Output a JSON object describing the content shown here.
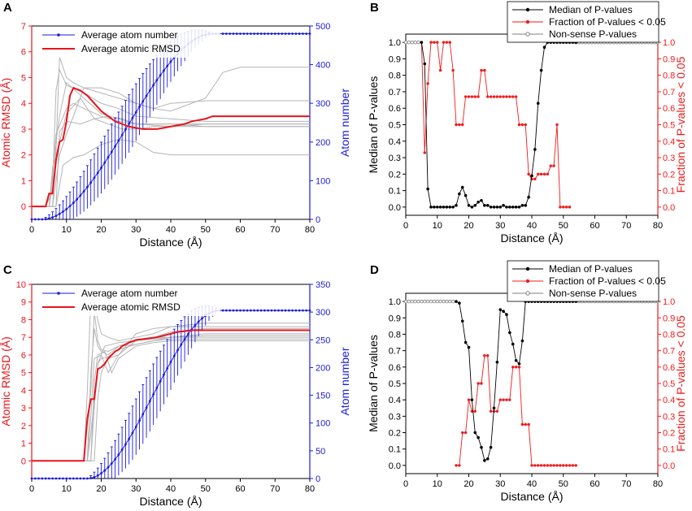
{
  "chart_data": [
    {
      "panel": "A",
      "type": "line",
      "xlabel": "Distance (Å)",
      "ylabel_left": "Atomic RMSD (Å)",
      "ylabel_right": "Atom number",
      "xlim": [
        0,
        80
      ],
      "ylim_left": [
        -0.5,
        7
      ],
      "ylim_right": [
        0,
        500
      ],
      "xticks": [
        0,
        10,
        20,
        30,
        40,
        50,
        60,
        70,
        80
      ],
      "yticks_left": [
        0,
        1,
        2,
        3,
        4,
        5,
        6,
        7
      ],
      "yticks_right": [
        0,
        100,
        200,
        300,
        400,
        500
      ],
      "legend": [
        "Average atom number",
        "Average atomic RMSD"
      ],
      "colors": {
        "rmsd": "#e8141b",
        "atoms": "#1a1adf",
        "individual": "#b4b4b4"
      },
      "rmsd": {
        "x": [
          0,
          4,
          5,
          6,
          7,
          8,
          9,
          10,
          11,
          12,
          14,
          16,
          18,
          20,
          22,
          24,
          26,
          28,
          30,
          32,
          34,
          36,
          38,
          40,
          42,
          44,
          46,
          48,
          50,
          52,
          54,
          60,
          70,
          80
        ],
        "y": [
          0,
          0,
          0.5,
          0.5,
          1.8,
          2.5,
          2.6,
          3.3,
          4.3,
          4.6,
          4.5,
          4.3,
          4.0,
          3.7,
          3.5,
          3.3,
          3.2,
          3.1,
          3.05,
          3.0,
          3.0,
          3.0,
          3.05,
          3.1,
          3.15,
          3.2,
          3.3,
          3.35,
          3.4,
          3.5,
          3.5,
          3.5,
          3.5,
          3.5
        ]
      },
      "atoms": {
        "x_start": 0,
        "x_end": 80,
        "step": 1,
        "rise_start": 3,
        "rise_end": 52,
        "max": 480,
        "err_max": 75
      },
      "individual": [
        {
          "x": [
            0,
            4,
            5,
            6,
            7,
            8,
            10,
            12,
            15,
            20,
            25,
            30,
            35,
            40,
            50,
            55,
            60,
            70,
            80
          ],
          "y": [
            0,
            0,
            0.3,
            0.6,
            2.2,
            5.8,
            5.0,
            4.8,
            4.6,
            4.4,
            4.2,
            4.0,
            3.8,
            3.7,
            4.2,
            5.2,
            5.4,
            5.4,
            5.4
          ]
        },
        {
          "x": [
            0,
            5,
            6,
            7,
            8,
            10,
            15,
            20,
            25,
            30,
            40,
            50,
            80
          ],
          "y": [
            0,
            0,
            0.8,
            4.5,
            5.3,
            4.7,
            4.4,
            4.0,
            3.8,
            3.5,
            3.4,
            3.3,
            3.3
          ]
        },
        {
          "x": [
            0,
            6,
            7,
            8,
            10,
            15,
            20,
            25,
            30,
            40,
            50,
            80
          ],
          "y": [
            0,
            0,
            2.5,
            3.5,
            4.8,
            4.2,
            3.6,
            3.4,
            3.2,
            3.2,
            3.1,
            3.1
          ]
        },
        {
          "x": [
            0,
            5,
            6,
            8,
            10,
            14,
            18,
            22,
            26,
            30,
            35,
            40,
            50,
            80
          ],
          "y": [
            0,
            0,
            1.5,
            2.5,
            3.6,
            4.2,
            3.4,
            3.2,
            3.0,
            3.0,
            3.1,
            3.1,
            3.1,
            3.1
          ]
        },
        {
          "x": [
            0,
            6,
            8,
            10,
            12,
            15,
            20,
            25,
            30,
            35,
            40,
            50,
            80
          ],
          "y": [
            0,
            0,
            2.0,
            2.8,
            3.5,
            4.6,
            4.6,
            4.4,
            4.0,
            3.8,
            4.0,
            4.1,
            4.1
          ]
        },
        {
          "x": [
            0,
            7,
            8,
            10,
            14,
            18,
            22,
            26,
            30,
            40,
            50,
            80
          ],
          "y": [
            0,
            0,
            2.9,
            3.3,
            3.2,
            3.4,
            3.5,
            3.4,
            3.2,
            3.2,
            3.2,
            3.2
          ]
        },
        {
          "x": [
            0,
            7,
            9,
            12,
            15,
            20,
            25,
            30,
            35,
            40,
            50,
            80
          ],
          "y": [
            0,
            0,
            1.6,
            1.9,
            2.0,
            2.4,
            2.6,
            2.5,
            2.1,
            2.0,
            2.0,
            2.0
          ]
        },
        {
          "x": [
            0,
            5,
            6,
            7,
            10,
            12,
            15,
            20,
            25,
            30,
            40,
            50,
            80
          ],
          "y": [
            0,
            0,
            1.2,
            2.8,
            3.8,
            4.0,
            3.8,
            3.5,
            3.3,
            3.2,
            3.1,
            3.2,
            3.2
          ]
        }
      ]
    },
    {
      "panel": "B",
      "type": "line",
      "xlabel": "Distance (Å)",
      "ylabel_left": "Median of P-values",
      "ylabel_right": "Fraction of P-values < 0.05",
      "xlim": [
        0,
        80
      ],
      "ylim": [
        -0.05,
        1.05
      ],
      "xticks": [
        0,
        10,
        20,
        30,
        40,
        50,
        60,
        70,
        80
      ],
      "yticks": [
        0.0,
        0.1,
        0.2,
        0.3,
        0.4,
        0.5,
        0.6,
        0.7,
        0.8,
        0.9,
        1.0
      ],
      "legend": [
        "Median of P-values",
        "Fraction of P-values < 0.05",
        "Non-sense P-values"
      ],
      "colors": {
        "median": "#000000",
        "fraction": "#ee1b1b",
        "nonsense": "#7f7f7f"
      },
      "median": {
        "x": [
          5,
          6,
          7,
          8,
          9,
          10,
          11,
          12,
          13,
          14,
          15,
          16,
          17,
          18,
          19,
          20,
          21,
          22,
          23,
          24,
          25,
          26,
          27,
          28,
          29,
          30,
          31,
          32,
          33,
          34,
          35,
          36,
          37,
          38,
          39,
          40,
          41,
          42,
          43,
          44,
          45,
          46,
          47,
          48,
          49,
          50,
          51,
          52,
          53,
          54
        ],
        "y": [
          1.0,
          0.87,
          0.11,
          0.0,
          0.0,
          0.0,
          0.0,
          0.0,
          0.0,
          0.0,
          0.0,
          0.01,
          0.08,
          0.12,
          0.07,
          0.01,
          0.0,
          0.01,
          0.03,
          0.04,
          0.01,
          0.01,
          0.0,
          0.0,
          0.0,
          0.0,
          0.01,
          0.0,
          0.0,
          0.0,
          0.0,
          0.0,
          0.01,
          0.01,
          0.06,
          0.19,
          0.35,
          0.63,
          0.83,
          0.97,
          1.0,
          1.0,
          1.0,
          1.0,
          1.0,
          1.0,
          1.0,
          1.0,
          1.0,
          1.0
        ]
      },
      "fraction": {
        "x": [
          5,
          6,
          7,
          8,
          9,
          10,
          11,
          12,
          13,
          14,
          15,
          16,
          17,
          18,
          19,
          20,
          21,
          22,
          23,
          24,
          25,
          26,
          27,
          28,
          29,
          30,
          31,
          32,
          33,
          34,
          35,
          36,
          37,
          38,
          39,
          40,
          41,
          42,
          43,
          44,
          45,
          46,
          47,
          48,
          49,
          50,
          51,
          52
        ],
        "y": [
          1.0,
          0.33,
          0.75,
          1.0,
          1.0,
          1.0,
          0.83,
          1.0,
          1.0,
          1.0,
          0.83,
          0.5,
          0.5,
          0.5,
          0.67,
          0.67,
          0.67,
          0.67,
          0.67,
          0.83,
          0.83,
          0.67,
          0.67,
          0.67,
          0.67,
          0.67,
          0.67,
          0.67,
          0.67,
          0.67,
          0.67,
          0.5,
          0.5,
          0.5,
          0.2,
          0.17,
          0.17,
          0.2,
          0.2,
          0.2,
          0.2,
          0.25,
          0.25,
          0.5,
          0.0,
          0.0,
          0.0,
          0.0
        ]
      },
      "nonsense": {
        "ranges": [
          [
            0,
            4
          ],
          [
            54,
            80
          ]
        ],
        "value": 1.0
      }
    },
    {
      "panel": "C",
      "type": "line",
      "xlabel": "Distance (Å)",
      "ylabel_left": "Atomic RMSD (Å)",
      "ylabel_right": "Atom number",
      "xlim": [
        0,
        80
      ],
      "ylim_left": [
        -1,
        10
      ],
      "ylim_right": [
        0,
        350
      ],
      "xticks": [
        0,
        10,
        20,
        30,
        40,
        50,
        60,
        70,
        80
      ],
      "yticks_left": [
        0,
        1,
        2,
        3,
        4,
        5,
        6,
        7,
        8,
        9,
        10
      ],
      "yticks_right": [
        0,
        50,
        100,
        150,
        200,
        250,
        300,
        350
      ],
      "legend": [
        "Average atom number",
        "Average atomic RMSD"
      ],
      "colors": {
        "rmsd": "#e8141b",
        "atoms": "#1a1adf",
        "individual": "#b4b4b4"
      },
      "rmsd": {
        "x": [
          0,
          15,
          16,
          17,
          18,
          19,
          20,
          21,
          22,
          23,
          24,
          25,
          26,
          28,
          30,
          32,
          34,
          36,
          38,
          40,
          42,
          44,
          46,
          48,
          50,
          55,
          60,
          70,
          80
        ],
        "y": [
          0,
          0,
          2.4,
          3.5,
          3.5,
          5.2,
          5.3,
          5.5,
          5.8,
          6.0,
          6.2,
          6.3,
          6.5,
          6.7,
          6.85,
          6.9,
          6.95,
          7.0,
          7.1,
          7.2,
          7.3,
          7.35,
          7.4,
          7.4,
          7.4,
          7.4,
          7.4,
          7.4,
          7.4
        ]
      },
      "atoms": {
        "x_start": 0,
        "x_end": 80,
        "step": 1,
        "rise_start": 16,
        "rise_end": 54,
        "max": 303,
        "err_max": 55
      },
      "individual": [
        {
          "x": [
            0,
            15,
            16,
            17,
            18,
            19,
            20,
            22,
            25,
            30,
            35,
            40,
            50,
            80
          ],
          "y": [
            0,
            0,
            4.0,
            9.2,
            9.0,
            8.0,
            7.2,
            7.0,
            6.8,
            7.0,
            7.2,
            7.6,
            7.8,
            7.8
          ]
        },
        {
          "x": [
            0,
            15,
            16,
            17,
            18,
            19,
            20,
            22,
            25,
            30,
            35,
            40,
            50,
            80
          ],
          "y": [
            0,
            0,
            2.2,
            4.0,
            8.5,
            6.8,
            6.3,
            6.2,
            6.5,
            6.8,
            7.0,
            7.0,
            7.0,
            7.0
          ]
        },
        {
          "x": [
            0,
            16,
            17,
            18,
            19,
            20,
            22,
            25,
            30,
            35,
            40,
            50,
            80
          ],
          "y": [
            0,
            0,
            5.0,
            7.5,
            6.5,
            6.2,
            6.0,
            6.5,
            6.6,
            6.8,
            7.0,
            7.2,
            7.2
          ]
        },
        {
          "x": [
            0,
            16,
            17,
            18,
            20,
            22,
            25,
            30,
            35,
            40,
            50,
            80
          ],
          "y": [
            0,
            0,
            2.5,
            5.8,
            6.0,
            5.0,
            6.0,
            7.2,
            7.5,
            7.6,
            7.6,
            7.6
          ]
        },
        {
          "x": [
            0,
            17,
            18,
            19,
            20,
            22,
            25,
            30,
            35,
            40,
            50,
            80
          ],
          "y": [
            0,
            0,
            3.0,
            5.5,
            5.8,
            5.9,
            6.3,
            6.6,
            6.8,
            6.9,
            6.9,
            6.9
          ]
        },
        {
          "x": [
            0,
            17,
            18,
            19,
            21,
            23,
            25,
            30,
            35,
            40,
            50,
            80
          ],
          "y": [
            0,
            0,
            4.5,
            6.0,
            6.2,
            5.0,
            5.8,
            6.5,
            6.7,
            6.8,
            6.8,
            6.8
          ]
        },
        {
          "x": [
            0,
            18,
            19,
            20,
            22,
            25,
            28,
            30,
            35,
            40,
            50,
            80
          ],
          "y": [
            0,
            0,
            3.5,
            5.0,
            5.8,
            6.0,
            6.5,
            6.8,
            7.0,
            7.3,
            7.5,
            7.5
          ]
        },
        {
          "x": [
            0,
            16,
            17,
            19,
            21,
            25,
            30,
            35,
            40,
            50,
            80
          ],
          "y": [
            0,
            0,
            1.5,
            5.5,
            6.5,
            6.7,
            6.8,
            6.9,
            7.0,
            7.1,
            7.1
          ]
        }
      ]
    },
    {
      "panel": "D",
      "type": "line",
      "xlabel": "Distance (Å)",
      "ylabel_left": "Median of P-values",
      "ylabel_right": "Fraction of P-values < 0.05",
      "xlim": [
        0,
        80
      ],
      "ylim": [
        -0.05,
        1.05
      ],
      "xticks": [
        0,
        10,
        20,
        30,
        40,
        50,
        60,
        70,
        80
      ],
      "yticks": [
        0.0,
        0.1,
        0.2,
        0.3,
        0.4,
        0.5,
        0.6,
        0.7,
        0.8,
        0.9,
        1.0
      ],
      "legend": [
        "Median of P-values",
        "Fraction of P-values < 0.05",
        "Non-sense P-values"
      ],
      "colors": {
        "median": "#000000",
        "fraction": "#ee1b1b",
        "nonsense": "#7f7f7f"
      },
      "median": {
        "x": [
          16,
          17,
          18,
          19,
          20,
          21,
          22,
          23,
          24,
          25,
          26,
          27,
          28,
          29,
          30,
          31,
          32,
          33,
          34,
          35,
          36,
          37,
          38,
          39,
          40,
          41,
          42,
          43,
          44,
          45,
          46,
          47,
          48,
          49,
          50,
          51,
          52,
          53,
          54
        ],
        "y": [
          1.0,
          0.99,
          0.88,
          0.75,
          0.72,
          0.4,
          0.2,
          0.17,
          0.11,
          0.03,
          0.04,
          0.11,
          0.35,
          0.63,
          0.95,
          0.94,
          0.92,
          0.81,
          0.74,
          0.64,
          0.62,
          0.76,
          1.0,
          1.0,
          1.0,
          1.0,
          1.0,
          1.0,
          1.0,
          1.0,
          1.0,
          1.0,
          1.0,
          1.0,
          1.0,
          1.0,
          1.0,
          1.0,
          1.0
        ]
      },
      "fraction": {
        "x": [
          16,
          17,
          18,
          19,
          20,
          21,
          22,
          23,
          24,
          25,
          26,
          27,
          28,
          29,
          30,
          31,
          32,
          33,
          34,
          35,
          36,
          37,
          38,
          39,
          40,
          41,
          42,
          43,
          44,
          45,
          46,
          47,
          48,
          49,
          50,
          51,
          52,
          53,
          54
        ],
        "y": [
          0.0,
          0.0,
          0.2,
          0.2,
          0.4,
          0.33,
          0.33,
          0.5,
          0.5,
          0.67,
          0.67,
          0.33,
          0.33,
          0.33,
          0.4,
          0.4,
          0.4,
          0.4,
          0.6,
          0.6,
          0.6,
          0.25,
          0.25,
          0.25,
          0.0,
          0.0,
          0.0,
          0.0,
          0.0,
          0.0,
          0.0,
          0.0,
          0.0,
          0.0,
          0.0,
          0.0,
          0.0,
          0.0,
          0.0
        ]
      },
      "nonsense": {
        "ranges": [
          [
            0,
            15
          ],
          [
            55,
            80
          ]
        ],
        "value": 1.0
      }
    }
  ]
}
